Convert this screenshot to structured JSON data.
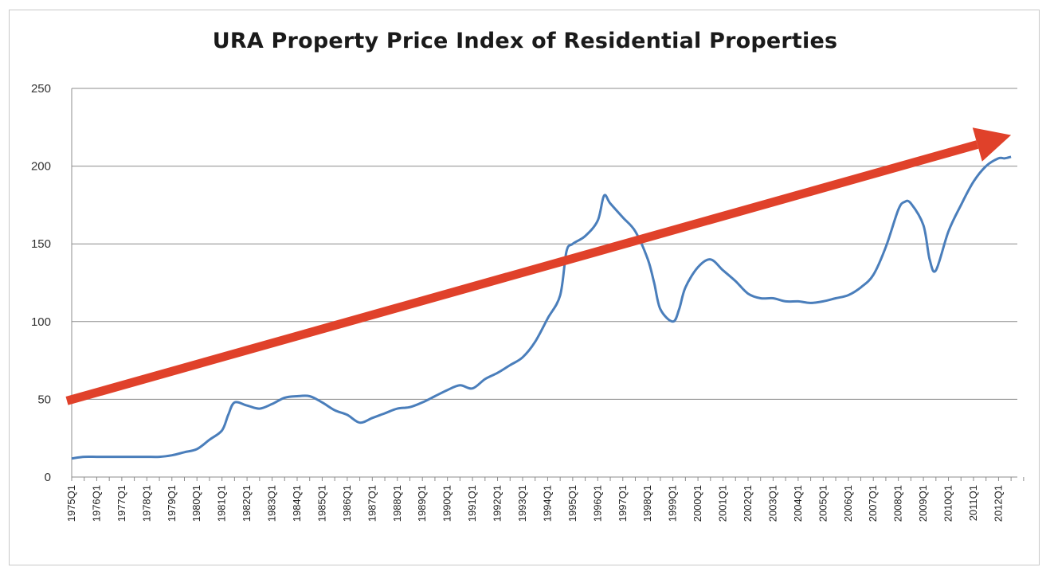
{
  "chart_data": {
    "type": "line",
    "title": "URA Property Price Index of Residential Properties",
    "xlabel": "",
    "ylabel": "",
    "ylim": [
      0,
      250
    ],
    "yticks": [
      0,
      50,
      100,
      150,
      200,
      250
    ],
    "xtick_labels": [
      "1975Q1",
      "1976Q1",
      "1977Q1",
      "1978Q1",
      "1979Q1",
      "1980Q1",
      "1981Q1",
      "1982Q1",
      "1983Q1",
      "1984Q1",
      "1985Q1",
      "1986Q1",
      "1987Q1",
      "1988Q1",
      "1989Q1",
      "1990Q1",
      "1991Q1",
      "1992Q1",
      "1993Q1",
      "1994Q1",
      "1995Q1",
      "1996Q1",
      "1997Q1",
      "1998Q1",
      "1999Q1",
      "2000Q1",
      "2001Q1",
      "2002Q1",
      "2003Q1",
      "2004Q1",
      "2005Q1",
      "2006Q1",
      "2007Q1",
      "2008Q1",
      "2009Q1",
      "2010Q1",
      "2011Q1",
      "2012Q1"
    ],
    "grid": true,
    "series": [
      {
        "color": "#4a7ebb",
        "points": [
          [
            "1975Q1",
            12
          ],
          [
            "1975Q3",
            13
          ],
          [
            "1976Q1",
            13
          ],
          [
            "1976Q3",
            13
          ],
          [
            "1977Q1",
            13
          ],
          [
            "1977Q3",
            13
          ],
          [
            "1978Q1",
            13
          ],
          [
            "1978Q3",
            13
          ],
          [
            "1979Q1",
            14
          ],
          [
            "1979Q3",
            16
          ],
          [
            "1980Q1",
            18
          ],
          [
            "1980Q3",
            24
          ],
          [
            "1981Q1",
            30
          ],
          [
            "1981Q2",
            40
          ],
          [
            "1981Q3",
            48
          ],
          [
            "1982Q1",
            46
          ],
          [
            "1982Q3",
            44
          ],
          [
            "1983Q1",
            47
          ],
          [
            "1983Q3",
            51
          ],
          [
            "1984Q1",
            52
          ],
          [
            "1984Q3",
            52
          ],
          [
            "1985Q1",
            48
          ],
          [
            "1985Q3",
            43
          ],
          [
            "1986Q1",
            40
          ],
          [
            "1986Q3",
            35
          ],
          [
            "1987Q1",
            38
          ],
          [
            "1987Q3",
            41
          ],
          [
            "1988Q1",
            44
          ],
          [
            "1988Q3",
            45
          ],
          [
            "1989Q1",
            48
          ],
          [
            "1989Q3",
            52
          ],
          [
            "1990Q1",
            56
          ],
          [
            "1990Q3",
            59
          ],
          [
            "1991Q1",
            57
          ],
          [
            "1991Q3",
            63
          ],
          [
            "1992Q1",
            67
          ],
          [
            "1992Q3",
            72
          ],
          [
            "1993Q1",
            77
          ],
          [
            "1993Q3",
            87
          ],
          [
            "1994Q1",
            102
          ],
          [
            "1994Q3",
            117
          ],
          [
            "1994Q4",
            145
          ],
          [
            "1995Q1",
            150
          ],
          [
            "1995Q3",
            155
          ],
          [
            "1996Q1",
            165
          ],
          [
            "1996Q2",
            181
          ],
          [
            "1996Q3",
            176
          ],
          [
            "1997Q1",
            167
          ],
          [
            "1997Q3",
            158
          ],
          [
            "1998Q1",
            140
          ],
          [
            "1998Q2",
            125
          ],
          [
            "1998Q3",
            108
          ],
          [
            "1999Q1",
            100
          ],
          [
            "1999Q2",
            108
          ],
          [
            "1999Q3",
            122
          ],
          [
            "2000Q1",
            135
          ],
          [
            "2000Q3",
            140
          ],
          [
            "2001Q1",
            133
          ],
          [
            "2001Q3",
            126
          ],
          [
            "2002Q1",
            118
          ],
          [
            "2002Q3",
            115
          ],
          [
            "2003Q1",
            115
          ],
          [
            "2003Q3",
            113
          ],
          [
            "2004Q1",
            113
          ],
          [
            "2004Q3",
            112
          ],
          [
            "2005Q1",
            113
          ],
          [
            "2005Q3",
            115
          ],
          [
            "2006Q1",
            117
          ],
          [
            "2006Q3",
            122
          ],
          [
            "2007Q1",
            130
          ],
          [
            "2007Q3",
            148
          ],
          [
            "2008Q1",
            172
          ],
          [
            "2008Q2",
            177
          ],
          [
            "2008Q3",
            176
          ],
          [
            "2009Q1",
            162
          ],
          [
            "2009Q2",
            140
          ],
          [
            "2009Q3",
            133
          ],
          [
            "2010Q1",
            158
          ],
          [
            "2010Q3",
            175
          ],
          [
            "2011Q1",
            190
          ],
          [
            "2011Q3",
            200
          ],
          [
            "2012Q1",
            205
          ],
          [
            "2012Q2",
            205
          ],
          [
            "2012Q3",
            206
          ]
        ]
      }
    ],
    "annotations": [
      {
        "type": "arrow",
        "color": "#e0412a",
        "from": [
          "1975Q1",
          49
        ],
        "to": [
          "2012Q3",
          220
        ]
      }
    ]
  }
}
